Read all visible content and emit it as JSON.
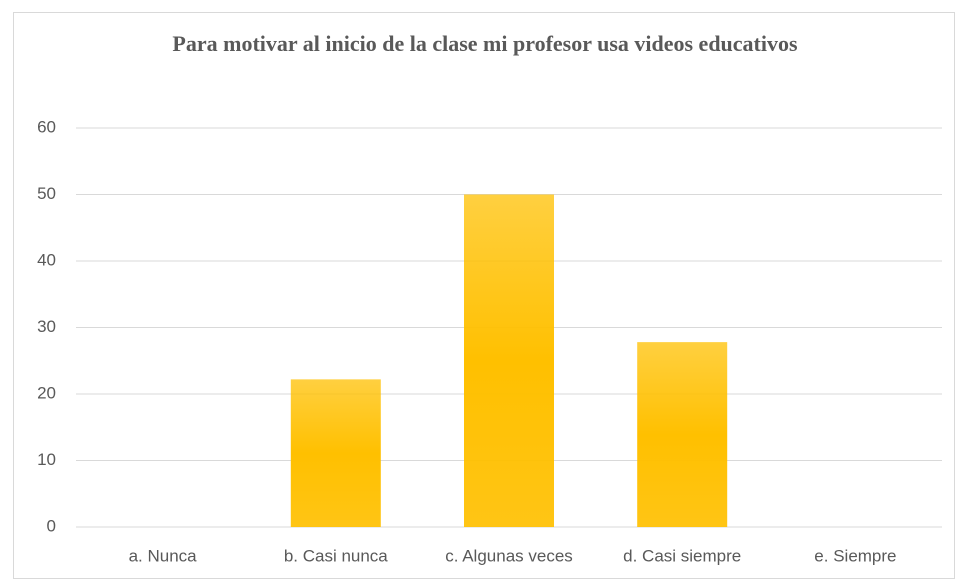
{
  "chart_data": {
    "type": "bar",
    "title": "Para motivar al inicio de la clase mi profesor usa videos educativos",
    "categories": [
      "a. Nunca",
      "b. Casi nunca",
      "c. Algunas veces",
      "d. Casi siempre",
      "e. Siempre"
    ],
    "values": [
      0,
      22.2,
      50,
      27.8,
      0
    ],
    "color": "#ffc000",
    "ylim": [
      0,
      60
    ],
    "yticks": [
      0,
      10,
      20,
      30,
      40,
      50,
      60
    ],
    "grid": true
  }
}
